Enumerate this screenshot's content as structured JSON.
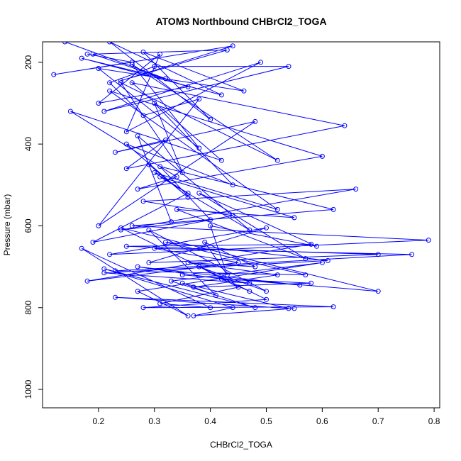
{
  "chart_data": {
    "type": "line",
    "title": "ATOM3 Northbound CHBrCl2_TOGA",
    "xlabel": "CHBrCl2_TOGA",
    "ylabel": "Pressure (mbar)",
    "xlim": [
      0.1,
      0.81
    ],
    "ylim": [
      1045,
      150
    ],
    "y_reversed": true,
    "xticks": [
      0.2,
      0.3,
      0.4,
      0.5,
      0.6,
      0.7,
      0.8
    ],
    "yticks": [
      200,
      400,
      600,
      800,
      1000
    ],
    "grid": false,
    "legend": "none",
    "color": "#0000ff",
    "marker": "open-circle",
    "series": [
      {
        "x": [
          0.18,
          0.26,
          0.12,
          0.44,
          0.24,
          0.43,
          0.19,
          0.36,
          0.2,
          0.31,
          0.25,
          0.49,
          0.21,
          0.54,
          0.3,
          0.22,
          0.28,
          0.38,
          0.2,
          0.48,
          0.23,
          0.32,
          0.25,
          0.64,
          0.26,
          0.42,
          0.15,
          0.34,
          0.27,
          0.6,
          0.22,
          0.52,
          0.3,
          0.36,
          0.19,
          0.44,
          0.28,
          0.66,
          0.24,
          0.4,
          0.31,
          0.62,
          0.26,
          0.79,
          0.22,
          0.5,
          0.29,
          0.7,
          0.25,
          0.58,
          0.18,
          0.45,
          0.3,
          0.76,
          0.23,
          0.57,
          0.32,
          0.61,
          0.21,
          0.47,
          0.27,
          0.56,
          0.35,
          0.7,
          0.24,
          0.5,
          0.28,
          0.62,
          0.23,
          0.54,
          0.35,
          0.41,
          0.29,
          0.5,
          0.38,
          0.45,
          0.31,
          0.4,
          0.17,
          0.36,
          0.27,
          0.6,
          0.33,
          0.48,
          0.21,
          0.44,
          0.37,
          0.55
        ],
        "y": [
          180,
          200,
          230,
          160,
          245,
          170,
          180,
          260,
          300,
          180,
          370,
          200,
          320,
          210,
          210,
          250,
          330,
          290,
          600,
          345,
          420,
          390,
          460,
          355,
          250,
          440,
          320,
          480,
          510,
          430,
          270,
          560,
          470,
          520,
          640,
          575,
          540,
          510,
          610,
          585,
          455,
          560,
          600,
          635,
          670,
          605,
          690,
          670,
          650,
          645,
          735,
          690,
          655,
          670,
          710,
          720,
          640,
          685,
          715,
          740,
          700,
          745,
          720,
          760,
          605,
          780,
          800,
          798,
          775,
          802,
          740,
          770,
          610,
          760,
          700,
          750,
          790,
          800,
          655,
          820,
          760,
          690,
          735,
          800,
          705,
          800,
          820,
          802
        ]
      },
      {
        "x": [
          0.14,
          0.32,
          0.17,
          0.42,
          0.22,
          0.4,
          0.28,
          0.46,
          0.2,
          0.38,
          0.26,
          0.52,
          0.24,
          0.35,
          0.3,
          0.44,
          0.25,
          0.36,
          0.29,
          0.33,
          0.27,
          0.47,
          0.31,
          0.55,
          0.34,
          0.57,
          0.38,
          0.59,
          0.4,
          0.43,
          0.39,
          0.48,
          0.36,
          0.52,
          0.37,
          0.58,
          0.42,
          0.47
        ],
        "y": [
          150,
          240,
          190,
          280,
          150,
          340,
          175,
          270,
          215,
          410,
          205,
          440,
          250,
          470,
          300,
          500,
          400,
          530,
          450,
          590,
          380,
          610,
          480,
          580,
          560,
          680,
          520,
          650,
          600,
          720,
          640,
          700,
          690,
          720,
          750,
          740,
          730,
          760
        ]
      }
    ]
  }
}
